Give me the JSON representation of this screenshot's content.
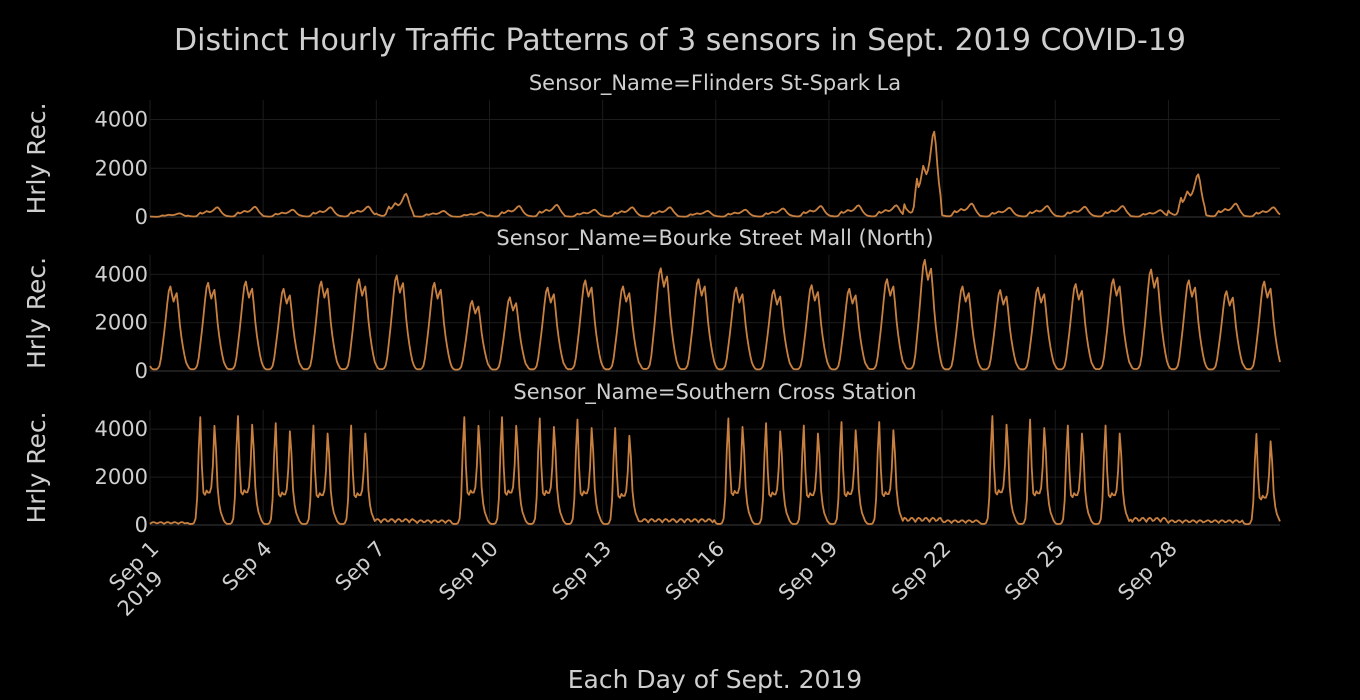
{
  "chart_data": {
    "type": "line",
    "title": "Distinct Hourly Traffic Patterns of 3 sensors in Sept. 2019 COVID-19",
    "xlabel": "Each Day of Sept. 2019",
    "ylabel": "Hrly Rec.",
    "x_ticks": [
      {
        "day": 1,
        "label": "Sep 1",
        "sublabel": "2019"
      },
      {
        "day": 4,
        "label": "Sep 4"
      },
      {
        "day": 7,
        "label": "Sep 7"
      },
      {
        "day": 10,
        "label": "Sep 10"
      },
      {
        "day": 13,
        "label": "Sep 13"
      },
      {
        "day": 16,
        "label": "Sep 16"
      },
      {
        "day": 19,
        "label": "Sep 19"
      },
      {
        "day": 22,
        "label": "Sep 22"
      },
      {
        "day": 25,
        "label": "Sep 25"
      },
      {
        "day": 28,
        "label": "Sep 28"
      }
    ],
    "xlim": [
      "2019-09-01 00:00",
      "2019-09-30 23:00"
    ],
    "grid": true,
    "line_color": "#c88040",
    "background": "#000000",
    "panels": [
      {
        "title": "Sensor_Name=Flinders St-Spark La",
        "ylim": [
          0,
          4800
        ],
        "y_ticks": [
          {
            "value": 0,
            "label": "0"
          },
          {
            "value": 2000,
            "label": "2000"
          },
          {
            "value": 4000,
            "label": "4000"
          }
        ],
        "daily_peak_estimates": [
          150,
          400,
          420,
          300,
          400,
          430,
          950,
          250,
          200,
          450,
          500,
          300,
          400,
          400,
          250,
          300,
          350,
          450,
          480,
          480,
          3500,
          550,
          380,
          450,
          420,
          450,
          280,
          1750,
          550,
          400
        ]
      },
      {
        "title": "Sensor_Name=Bourke Street Mall (North)",
        "ylim": [
          0,
          4800
        ],
        "y_ticks": [
          {
            "value": 0,
            "label": "0"
          },
          {
            "value": 2000,
            "label": "2000"
          },
          {
            "value": 4000,
            "label": "4000"
          }
        ],
        "daily_peak_estimates": [
          3500,
          3650,
          3700,
          3400,
          3700,
          3800,
          3950,
          3650,
          2900,
          3050,
          3450,
          3750,
          3500,
          4250,
          3800,
          3450,
          3350,
          3550,
          3400,
          3800,
          4600,
          3500,
          3350,
          3450,
          3600,
          3800,
          4200,
          3750,
          3300,
          3700
        ]
      },
      {
        "title": "Sensor_Name=Southern Cross Station",
        "ylim": [
          0,
          4800
        ],
        "y_ticks": [
          {
            "value": 0,
            "label": "0"
          },
          {
            "value": 2000,
            "label": "2000"
          },
          {
            "value": 4000,
            "label": "4000"
          }
        ],
        "daily_peak_estimates": [
          120,
          4500,
          4550,
          4250,
          4150,
          4150,
          250,
          200,
          4500,
          4500,
          4450,
          4400,
          4050,
          250,
          250,
          4450,
          4250,
          4150,
          4300,
          4300,
          300,
          200,
          4550,
          4400,
          4150,
          4150,
          300,
          200,
          200,
          3800
        ]
      }
    ]
  }
}
